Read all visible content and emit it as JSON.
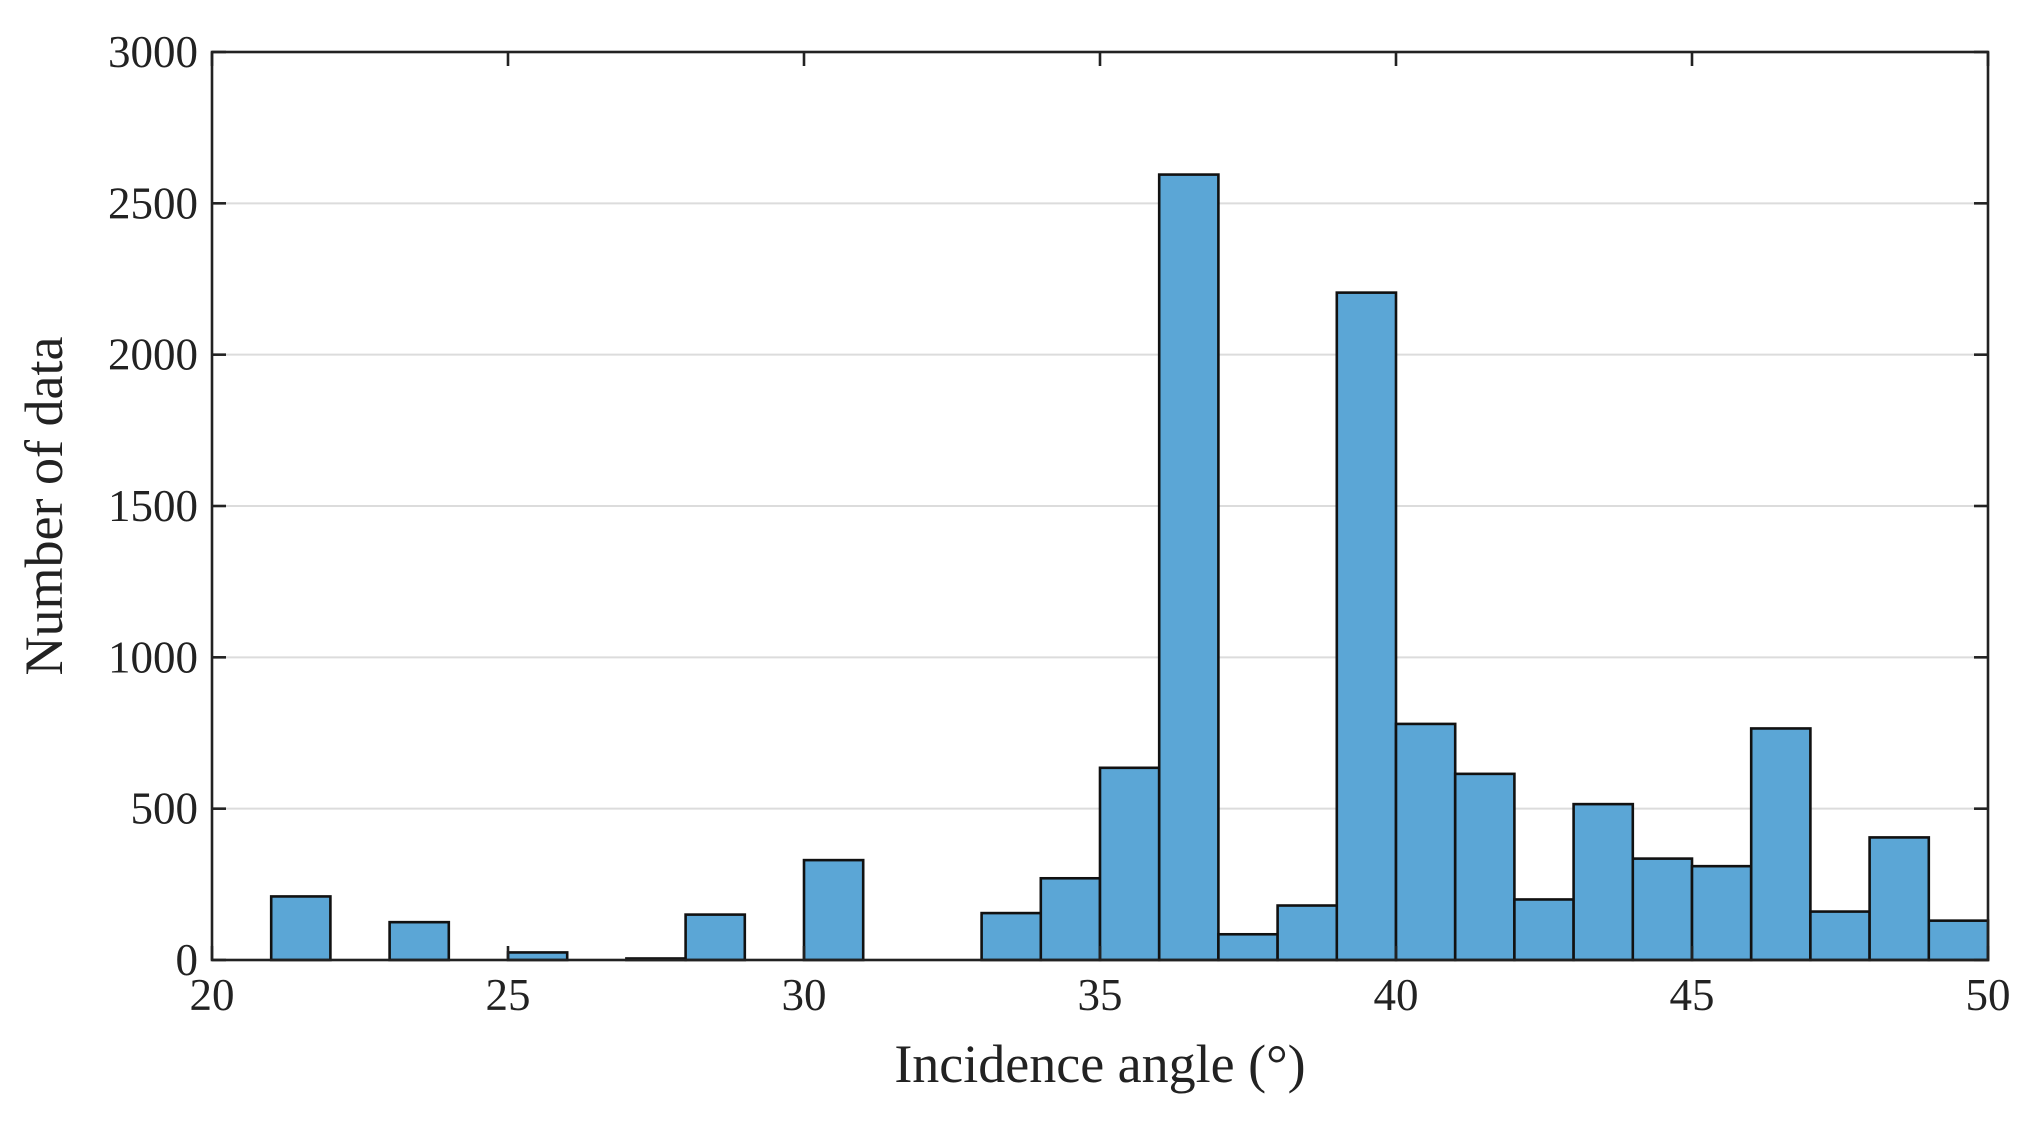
{
  "chart_data": {
    "type": "histogram",
    "title": "",
    "xlabel": "Incidence angle (°)",
    "ylabel": "Number of data",
    "xlim": [
      20,
      50
    ],
    "ylim": [
      0,
      3000
    ],
    "bin_width": 1,
    "xticks": [
      "20",
      "25",
      "30",
      "35",
      "40",
      "45",
      "50"
    ],
    "yticks": [
      "0",
      "500",
      "1000",
      "1500",
      "2000",
      "2500",
      "3000"
    ],
    "grid": "horizontal",
    "bar_color": "#5ba6d6",
    "bins": [
      {
        "start": 21,
        "count": 210
      },
      {
        "start": 22,
        "count": 0
      },
      {
        "start": 23,
        "count": 125
      },
      {
        "start": 24,
        "count": 0
      },
      {
        "start": 25,
        "count": 25
      },
      {
        "start": 26,
        "count": 0
      },
      {
        "start": 27,
        "count": 5
      },
      {
        "start": 28,
        "count": 150
      },
      {
        "start": 29,
        "count": 0
      },
      {
        "start": 30,
        "count": 330
      },
      {
        "start": 31,
        "count": 0
      },
      {
        "start": 32,
        "count": 0
      },
      {
        "start": 33,
        "count": 155
      },
      {
        "start": 34,
        "count": 270
      },
      {
        "start": 35,
        "count": 635
      },
      {
        "start": 36,
        "count": 2595
      },
      {
        "start": 37,
        "count": 85
      },
      {
        "start": 38,
        "count": 180
      },
      {
        "start": 39,
        "count": 2205
      },
      {
        "start": 40,
        "count": 780
      },
      {
        "start": 41,
        "count": 615
      },
      {
        "start": 42,
        "count": 200
      },
      {
        "start": 43,
        "count": 515
      },
      {
        "start": 44,
        "count": 335
      },
      {
        "start": 45,
        "count": 310
      },
      {
        "start": 46,
        "count": 765
      },
      {
        "start": 47,
        "count": 160
      },
      {
        "start": 48,
        "count": 405
      },
      {
        "start": 49,
        "count": 130
      }
    ]
  }
}
